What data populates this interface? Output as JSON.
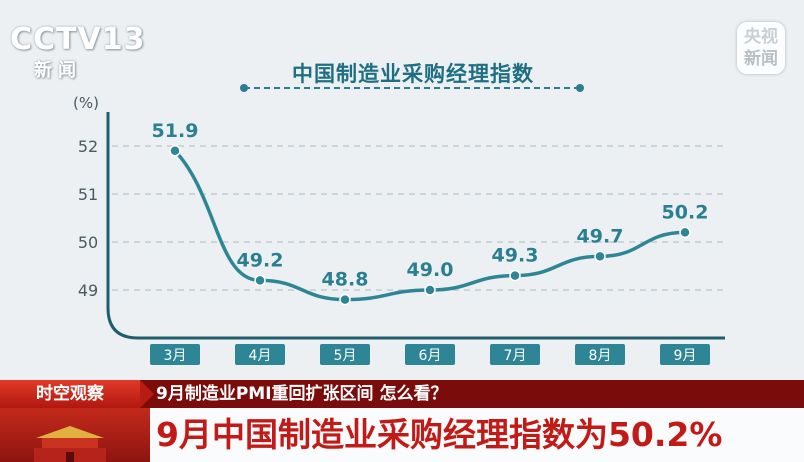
{
  "watermark": {
    "cctv_logo": "CCTV",
    "cctv_logo_number": "13",
    "cctv_logo_sub": "新闻",
    "corner_logo_line1": "央视",
    "corner_logo_line2": "新闻"
  },
  "colors": {
    "line": "#2e8596",
    "axis": "#1f5e6c",
    "tick_box": "#2e8596",
    "headline_red": "#c21a16",
    "ticker_bg": "#7b0c0c"
  },
  "chart_data": {
    "type": "line",
    "title": "中国制造业采购经理指数",
    "ylabel": "(%)",
    "xlabel": "",
    "categories": [
      "3月",
      "4月",
      "5月",
      "6月",
      "7月",
      "8月",
      "9月"
    ],
    "values": [
      51.9,
      49.2,
      48.8,
      49.0,
      49.3,
      49.7,
      50.2
    ],
    "data_labels": [
      "51.9",
      "49.2",
      "48.8",
      "49.0",
      "49.3",
      "49.7",
      "50.2"
    ],
    "y_ticks": [
      "49",
      "50",
      "51",
      "52"
    ],
    "y_tick_values": [
      49,
      50,
      51,
      52
    ],
    "ylim": [
      48,
      52.3
    ],
    "grid": true,
    "grid_style": "dashed"
  },
  "ticker": {
    "tag": "时空观察",
    "text": "9月制造业PMI重回扩张区间 怎么看？"
  },
  "headline": {
    "text": "9月中国制造业采购经理指数为50.2%"
  }
}
